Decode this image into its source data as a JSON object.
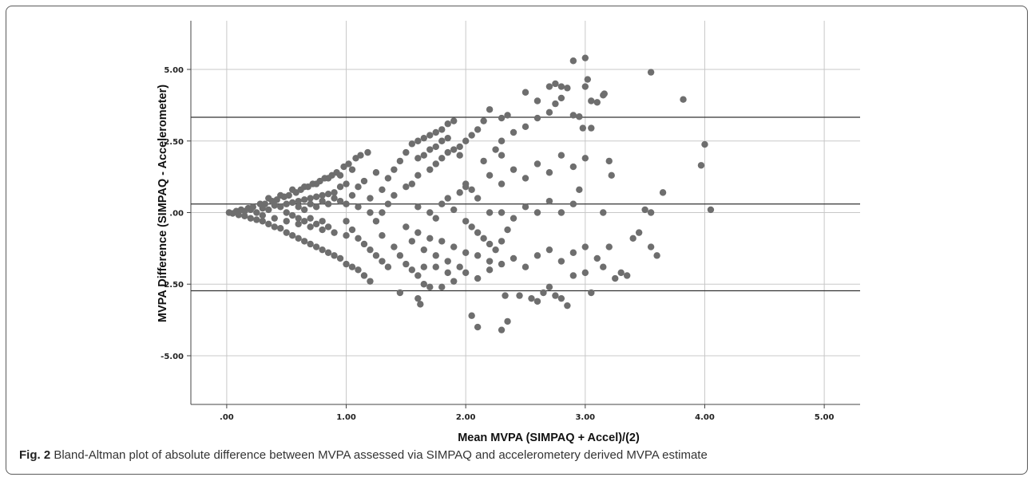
{
  "caption": {
    "label": "Fig. 2",
    "text": "Bland-Altman plot of absolute difference between MVPA assessed via SIMPAQ and accelerometery derived MVPA estimate"
  },
  "colors": {
    "point": "#6e6e6e",
    "grid": "#c8c8c8",
    "axis": "#444444",
    "refline": "#333333"
  },
  "chart_data": {
    "type": "scatter",
    "title": "",
    "xlabel": "Mean MVPA (SIMPAQ + Accel)/(2)",
    "ylabel": "MVPA Difference (SIMPAQ - Accelerometer)",
    "xlim": [
      -0.3,
      5.3
    ],
    "ylim": [
      -6.7,
      6.7
    ],
    "x_ticks": [
      0,
      1,
      2,
      3,
      4,
      5
    ],
    "x_tick_labels": [
      ".00",
      "1.00",
      "2.00",
      "3.00",
      "4.00",
      "5.00"
    ],
    "y_ticks": [
      5,
      2.5,
      0,
      -2.5,
      -5
    ],
    "y_tick_labels": [
      "5.00",
      "2.50",
      ".00",
      "-2.50",
      "-5.00"
    ],
    "grid": {
      "x": true,
      "y": true
    },
    "reference_lines": [
      3.33,
      0.3,
      -2.73
    ],
    "points": [
      [
        0.02,
        0.0
      ],
      [
        0.05,
        -0.03
      ],
      [
        0.08,
        0.05
      ],
      [
        0.1,
        -0.08
      ],
      [
        0.12,
        0.1
      ],
      [
        0.15,
        -0.12
      ],
      [
        0.18,
        0.15
      ],
      [
        0.2,
        -0.2
      ],
      [
        0.22,
        0.2
      ],
      [
        0.25,
        -0.25
      ],
      [
        0.28,
        0.3
      ],
      [
        0.3,
        -0.3
      ],
      [
        0.32,
        0.3
      ],
      [
        0.35,
        -0.4
      ],
      [
        0.38,
        0.4
      ],
      [
        0.4,
        -0.5
      ],
      [
        0.42,
        0.45
      ],
      [
        0.45,
        -0.55
      ],
      [
        0.48,
        0.55
      ],
      [
        0.5,
        -0.7
      ],
      [
        0.52,
        0.6
      ],
      [
        0.55,
        -0.8
      ],
      [
        0.58,
        0.7
      ],
      [
        0.6,
        -0.9
      ],
      [
        0.62,
        0.8
      ],
      [
        0.65,
        -1.0
      ],
      [
        0.68,
        0.9
      ],
      [
        0.7,
        -1.1
      ],
      [
        0.72,
        1.0
      ],
      [
        0.75,
        -1.2
      ],
      [
        0.78,
        1.1
      ],
      [
        0.8,
        -1.3
      ],
      [
        0.82,
        1.2
      ],
      [
        0.85,
        -1.4
      ],
      [
        0.88,
        1.3
      ],
      [
        0.9,
        -1.5
      ],
      [
        0.92,
        1.4
      ],
      [
        0.95,
        -1.6
      ],
      [
        0.98,
        1.6
      ],
      [
        1.0,
        -1.8
      ],
      [
        1.02,
        1.7
      ],
      [
        1.05,
        -1.9
      ],
      [
        1.08,
        1.9
      ],
      [
        1.1,
        -2.0
      ],
      [
        1.12,
        2.0
      ],
      [
        1.15,
        -2.2
      ],
      [
        1.18,
        2.1
      ],
      [
        1.2,
        -2.4
      ],
      [
        0.15,
        0.05
      ],
      [
        0.2,
        0.1
      ],
      [
        0.25,
        0.0
      ],
      [
        0.3,
        0.15
      ],
      [
        0.35,
        0.1
      ],
      [
        0.4,
        0.25
      ],
      [
        0.45,
        0.2
      ],
      [
        0.5,
        0.3
      ],
      [
        0.55,
        0.35
      ],
      [
        0.6,
        0.4
      ],
      [
        0.65,
        0.45
      ],
      [
        0.7,
        0.5
      ],
      [
        0.75,
        0.55
      ],
      [
        0.8,
        0.6
      ],
      [
        0.85,
        0.65
      ],
      [
        0.9,
        0.7
      ],
      [
        0.3,
        -0.1
      ],
      [
        0.4,
        -0.2
      ],
      [
        0.5,
        -0.3
      ],
      [
        0.6,
        -0.4
      ],
      [
        0.7,
        -0.5
      ],
      [
        0.8,
        -0.6
      ],
      [
        0.9,
        -0.7
      ],
      [
        1.0,
        -0.8
      ],
      [
        0.35,
        0.5
      ],
      [
        0.45,
        0.6
      ],
      [
        0.55,
        0.8
      ],
      [
        0.65,
        0.9
      ],
      [
        0.75,
        1.0
      ],
      [
        0.85,
        1.2
      ],
      [
        0.95,
        1.3
      ],
      [
        1.05,
        1.5
      ],
      [
        1.1,
        0.2
      ],
      [
        1.2,
        0.5
      ],
      [
        1.25,
        -0.3
      ],
      [
        1.3,
        0.8
      ],
      [
        1.35,
        1.2
      ],
      [
        1.4,
        1.5
      ],
      [
        1.45,
        1.8
      ],
      [
        1.5,
        2.1
      ],
      [
        1.55,
        2.4
      ],
      [
        1.6,
        2.5
      ],
      [
        1.65,
        2.6
      ],
      [
        1.7,
        2.7
      ],
      [
        1.75,
        2.8
      ],
      [
        1.8,
        2.9
      ],
      [
        1.85,
        3.1
      ],
      [
        1.9,
        3.2
      ],
      [
        1.3,
        -0.8
      ],
      [
        1.4,
        -1.2
      ],
      [
        1.45,
        -1.5
      ],
      [
        1.5,
        -1.8
      ],
      [
        1.55,
        -2.0
      ],
      [
        1.6,
        -2.2
      ],
      [
        1.65,
        -2.5
      ],
      [
        1.7,
        -2.6
      ],
      [
        1.45,
        -2.8
      ],
      [
        1.6,
        -3.0
      ],
      [
        1.62,
        -3.2
      ],
      [
        1.8,
        -2.6
      ],
      [
        1.9,
        -2.4
      ],
      [
        2.0,
        -2.1
      ],
      [
        2.1,
        -2.3
      ],
      [
        2.2,
        -2.0
      ],
      [
        1.3,
        0.0
      ],
      [
        1.35,
        0.3
      ],
      [
        1.4,
        0.6
      ],
      [
        1.5,
        0.9
      ],
      [
        1.55,
        1.0
      ],
      [
        1.6,
        1.3
      ],
      [
        1.7,
        1.5
      ],
      [
        1.75,
        1.7
      ],
      [
        1.8,
        1.9
      ],
      [
        1.85,
        2.1
      ],
      [
        1.95,
        2.3
      ],
      [
        2.0,
        2.5
      ],
      [
        2.05,
        2.7
      ],
      [
        2.1,
        2.9
      ],
      [
        2.15,
        3.2
      ],
      [
        2.2,
        3.6
      ],
      [
        1.5,
        -0.5
      ],
      [
        1.6,
        -0.7
      ],
      [
        1.7,
        -0.9
      ],
      [
        1.8,
        -1.0
      ],
      [
        1.9,
        -1.2
      ],
      [
        2.0,
        -1.4
      ],
      [
        2.1,
        -1.5
      ],
      [
        2.2,
        -1.7
      ],
      [
        2.05,
        -3.6
      ],
      [
        2.1,
        -4.0
      ],
      [
        2.3,
        -4.1
      ],
      [
        2.35,
        -3.8
      ],
      [
        2.33,
        -2.9
      ],
      [
        2.45,
        -2.9
      ],
      [
        2.55,
        -3.0
      ],
      [
        2.6,
        -3.1
      ],
      [
        2.7,
        -2.6
      ],
      [
        2.75,
        -2.9
      ],
      [
        2.8,
        -3.0
      ],
      [
        2.85,
        -3.25
      ],
      [
        3.05,
        -2.8
      ],
      [
        2.65,
        -2.8
      ],
      [
        2.9,
        -2.2
      ],
      [
        3.0,
        -2.1
      ],
      [
        2.3,
        -1.8
      ],
      [
        2.4,
        -1.6
      ],
      [
        2.5,
        -1.9
      ],
      [
        2.6,
        -1.5
      ],
      [
        2.7,
        -1.3
      ],
      [
        2.8,
        -1.7
      ],
      [
        2.9,
        -1.4
      ],
      [
        3.0,
        -1.2
      ],
      [
        3.1,
        -1.6
      ],
      [
        3.15,
        -1.9
      ],
      [
        3.2,
        -1.2
      ],
      [
        3.25,
        -2.3
      ],
      [
        3.3,
        -2.1
      ],
      [
        3.35,
        -2.2
      ],
      [
        3.4,
        -0.9
      ],
      [
        3.45,
        -0.7
      ],
      [
        3.55,
        -1.2
      ],
      [
        3.6,
        -1.5
      ],
      [
        3.5,
        0.1
      ],
      [
        3.55,
        0.0
      ],
      [
        3.65,
        0.7
      ],
      [
        3.2,
        1.8
      ],
      [
        3.22,
        1.3
      ],
      [
        3.15,
        0.0
      ],
      [
        2.3,
        0.0
      ],
      [
        2.4,
        -0.2
      ],
      [
        2.5,
        0.2
      ],
      [
        2.6,
        0.0
      ],
      [
        2.7,
        0.4
      ],
      [
        2.8,
        0.0
      ],
      [
        2.9,
        0.3
      ],
      [
        2.95,
        0.8
      ],
      [
        2.3,
        1.0
      ],
      [
        2.4,
        1.5
      ],
      [
        2.5,
        1.2
      ],
      [
        2.6,
        1.7
      ],
      [
        2.7,
        1.4
      ],
      [
        2.8,
        2.0
      ],
      [
        2.9,
        1.6
      ],
      [
        3.0,
        1.9
      ],
      [
        2.3,
        2.5
      ],
      [
        2.4,
        2.8
      ],
      [
        2.5,
        3.0
      ],
      [
        2.6,
        3.3
      ],
      [
        2.7,
        3.5
      ],
      [
        2.75,
        3.8
      ],
      [
        2.8,
        4.0
      ],
      [
        2.9,
        3.4
      ],
      [
        2.3,
        3.3
      ],
      [
        2.35,
        3.4
      ],
      [
        2.5,
        4.2
      ],
      [
        2.6,
        3.9
      ],
      [
        2.7,
        4.4
      ],
      [
        2.75,
        4.5
      ],
      [
        2.8,
        4.4
      ],
      [
        2.85,
        4.35
      ],
      [
        2.9,
        5.3
      ],
      [
        3.0,
        5.4
      ],
      [
        3.02,
        4.65
      ],
      [
        3.05,
        3.9
      ],
      [
        3.1,
        3.85
      ],
      [
        3.15,
        4.1
      ],
      [
        3.16,
        4.15
      ],
      [
        2.95,
        3.35
      ],
      [
        3.0,
        4.4
      ],
      [
        3.05,
        2.95
      ],
      [
        3.55,
        4.9
      ],
      [
        3.82,
        3.95
      ],
      [
        4.0,
        2.38
      ],
      [
        3.97,
        1.65
      ],
      [
        4.05,
        0.1
      ],
      [
        2.98,
        2.95
      ],
      [
        2.0,
        1.0
      ],
      [
        2.05,
        0.8
      ],
      [
        2.1,
        0.5
      ],
      [
        2.2,
        1.3
      ],
      [
        2.15,
        1.8
      ],
      [
        2.25,
        2.2
      ],
      [
        2.3,
        2.0
      ],
      [
        2.2,
        0.0
      ],
      [
        2.0,
        -0.3
      ],
      [
        2.05,
        -0.5
      ],
      [
        2.1,
        -0.7
      ],
      [
        2.15,
        -0.9
      ],
      [
        2.2,
        -1.1
      ],
      [
        2.25,
        -1.3
      ],
      [
        2.3,
        -1.0
      ],
      [
        2.35,
        -0.6
      ],
      [
        1.0,
        0.3
      ],
      [
        1.05,
        0.6
      ],
      [
        1.1,
        0.9
      ],
      [
        1.15,
        1.1
      ],
      [
        1.2,
        0.0
      ],
      [
        1.25,
        1.4
      ],
      [
        1.0,
        1.0
      ],
      [
        0.95,
        0.9
      ],
      [
        1.0,
        -0.3
      ],
      [
        1.05,
        -0.6
      ],
      [
        1.1,
        -0.9
      ],
      [
        1.15,
        -1.1
      ],
      [
        1.2,
        -1.3
      ],
      [
        1.25,
        -1.5
      ],
      [
        1.3,
        -1.7
      ],
      [
        1.35,
        -1.9
      ],
      [
        0.6,
        0.2
      ],
      [
        0.65,
        0.1
      ],
      [
        0.7,
        0.3
      ],
      [
        0.75,
        0.2
      ],
      [
        0.8,
        0.4
      ],
      [
        0.85,
        0.3
      ],
      [
        0.9,
        0.5
      ],
      [
        0.95,
        0.4
      ],
      [
        0.5,
        0.0
      ],
      [
        0.55,
        -0.1
      ],
      [
        0.6,
        -0.2
      ],
      [
        0.65,
        -0.3
      ],
      [
        0.7,
        -0.2
      ],
      [
        0.75,
        -0.4
      ],
      [
        0.8,
        -0.3
      ],
      [
        0.85,
        -0.5
      ],
      [
        1.6,
        0.2
      ],
      [
        1.7,
        0.0
      ],
      [
        1.75,
        -0.2
      ],
      [
        1.8,
        0.3
      ],
      [
        1.85,
        0.5
      ],
      [
        1.9,
        0.1
      ],
      [
        1.95,
        0.7
      ],
      [
        2.0,
        0.9
      ],
      [
        1.6,
        1.9
      ],
      [
        1.65,
        2.0
      ],
      [
        1.7,
        2.2
      ],
      [
        1.75,
        2.3
      ],
      [
        1.8,
        2.5
      ],
      [
        1.85,
        2.6
      ],
      [
        1.9,
        2.2
      ],
      [
        1.95,
        2.0
      ],
      [
        1.55,
        -1.0
      ],
      [
        1.65,
        -1.3
      ],
      [
        1.75,
        -1.5
      ],
      [
        1.85,
        -1.7
      ],
      [
        1.95,
        -1.9
      ],
      [
        1.75,
        -1.9
      ],
      [
        1.85,
        -2.1
      ],
      [
        1.65,
        -1.9
      ]
    ]
  }
}
